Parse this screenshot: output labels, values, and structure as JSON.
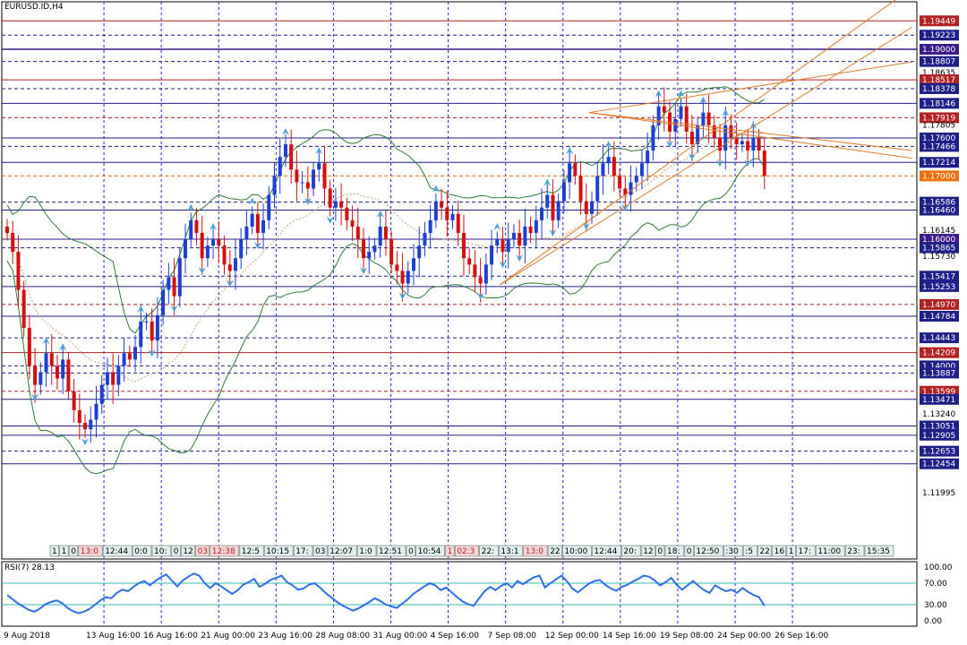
{
  "symbol_label": "EURUSD.ID,H4",
  "rsi_label": "RSI(7) 28.13",
  "colors": {
    "up": "#1f3fcf",
    "down": "#d21010",
    "bands": "#2e7d32",
    "trend": "#e07a2a",
    "grid": "#1c2bd6",
    "rsi": "#2f6fe8",
    "rsi_level": "#33bcbc"
  },
  "chart_data": {
    "type": "candlestick",
    "timeframe": "H4",
    "ylim": [
      1.1095,
      1.1975
    ],
    "x_labels": [
      "9 Aug 2018",
      "13 Aug 16:00",
      "16 Aug 16:00",
      "21 Aug 00:00",
      "23 Aug 16:00",
      "28 Aug 08:00",
      "31 Aug 00:00",
      "4 Sep 16:00",
      "7 Sep 08:00",
      "12 Sep 00:00",
      "14 Sep 16:00",
      "19 Sep 08:00",
      "24 Sep 00:00",
      "26 Sep 16:00"
    ],
    "price_ticks": [
      {
        "value": 1.19449,
        "label": "1.19449",
        "style": "box",
        "color": "#b22222"
      },
      {
        "value": 1.19223,
        "label": "1.19223",
        "style": "box",
        "color": "#1f1f8a"
      },
      {
        "value": 1.19,
        "label": "1.19000",
        "style": "box",
        "color": "#3b1a8a"
      },
      {
        "value": 1.18807,
        "label": "1.18807",
        "style": "box",
        "color": "#1f1f8a"
      },
      {
        "value": 1.18635,
        "label": "1.18635",
        "style": "plain"
      },
      {
        "value": 1.18517,
        "label": "1.18517",
        "style": "box",
        "color": "#b22222"
      },
      {
        "value": 1.18378,
        "label": "1.18378",
        "style": "box",
        "color": "#1f1f8a"
      },
      {
        "value": 1.18146,
        "label": "1.18146",
        "style": "box",
        "color": "#1f1f8a"
      },
      {
        "value": 1.17919,
        "label": "1.17919",
        "style": "box",
        "color": "#b22222"
      },
      {
        "value": 1.17805,
        "label": "1.17805",
        "style": "plain"
      },
      {
        "value": 1.176,
        "label": "1.17600",
        "style": "box",
        "color": "#1f1f8a"
      },
      {
        "value": 1.17466,
        "label": "1.17466",
        "style": "box",
        "color": "#1f1f8a"
      },
      {
        "value": 1.17214,
        "label": "1.17214",
        "style": "box",
        "color": "#1f1f8a"
      },
      {
        "value": 1.17,
        "label": "1.17000",
        "style": "box",
        "color": "#f07010"
      },
      {
        "value": 1.16586,
        "label": "1.16586",
        "style": "box",
        "color": "#1f1f8a"
      },
      {
        "value": 1.1646,
        "label": "1.16460",
        "style": "box",
        "color": "#1f1f8a"
      },
      {
        "value": 1.16145,
        "label": "1.16145",
        "style": "plain"
      },
      {
        "value": 1.16,
        "label": "1.16000",
        "style": "box",
        "color": "#3b1a8a"
      },
      {
        "value": 1.15865,
        "label": "1.15865",
        "style": "box",
        "color": "#1f1f8a"
      },
      {
        "value": 1.1573,
        "label": "1.15730",
        "style": "plain"
      },
      {
        "value": 1.15417,
        "label": "1.15417",
        "style": "box",
        "color": "#1f1f8a"
      },
      {
        "value": 1.15253,
        "label": "1.15253",
        "style": "box",
        "color": "#1f1f8a"
      },
      {
        "value": 1.1497,
        "label": "1.14970",
        "style": "box",
        "color": "#b22222"
      },
      {
        "value": 1.14784,
        "label": "1.14784",
        "style": "box",
        "color": "#1f1f8a"
      },
      {
        "value": 1.14443,
        "label": "1.14443",
        "style": "box",
        "color": "#1f1f8a"
      },
      {
        "value": 1.14209,
        "label": "1.14209",
        "style": "box",
        "color": "#b22222"
      },
      {
        "value": 1.14,
        "label": "1.14000",
        "style": "box",
        "color": "#1f1f8a"
      },
      {
        "value": 1.13887,
        "label": "1.13887",
        "style": "box",
        "color": "#1f1f8a"
      },
      {
        "value": 1.13599,
        "label": "1.13599",
        "style": "box",
        "color": "#b22222"
      },
      {
        "value": 1.13471,
        "label": "1.13471",
        "style": "box",
        "color": "#1f1f8a"
      },
      {
        "value": 1.1324,
        "label": "1.13240",
        "style": "plain"
      },
      {
        "value": 1.13051,
        "label": "1.13051",
        "style": "box",
        "color": "#1f1f8a"
      },
      {
        "value": 1.12905,
        "label": "1.12905",
        "style": "box",
        "color": "#1f1f8a"
      },
      {
        "value": 1.12653,
        "label": "1.12653",
        "style": "box",
        "color": "#1f1f8a"
      },
      {
        "value": 1.12454,
        "label": "1.12454",
        "style": "box",
        "color": "#1f1f8a"
      },
      {
        "value": 1.11995,
        "label": "1.11995",
        "style": "plain"
      }
    ],
    "horizontal_levels": [
      {
        "value": 1.19449,
        "style": "solid",
        "color": "#b22222"
      },
      {
        "value": 1.19223,
        "style": "dash",
        "color": "#1f1f8a"
      },
      {
        "value": 1.19,
        "style": "solid",
        "color": "#3b1a8a",
        "width": 1.5
      },
      {
        "value": 1.18807,
        "style": "dash",
        "color": "#1f1f8a"
      },
      {
        "value": 1.18517,
        "style": "solid",
        "color": "#b22222"
      },
      {
        "value": 1.18378,
        "style": "dash",
        "color": "#1f1f8a"
      },
      {
        "value": 1.18146,
        "style": "solid",
        "color": "#1f1f8a"
      },
      {
        "value": 1.17919,
        "style": "dash",
        "color": "#b22222"
      },
      {
        "value": 1.176,
        "style": "solid",
        "color": "#1f1f8a"
      },
      {
        "value": 1.17466,
        "style": "dash",
        "color": "#1f1f8a"
      },
      {
        "value": 1.17214,
        "style": "solid",
        "color": "#1f1f8a"
      },
      {
        "value": 1.17,
        "style": "dash",
        "color": "#f07010"
      },
      {
        "value": 1.16586,
        "style": "dash",
        "color": "#1f1f8a"
      },
      {
        "value": 1.1646,
        "style": "solid",
        "color": "#1f1f8a"
      },
      {
        "value": 1.16,
        "style": "solid",
        "color": "#3b1a8a"
      },
      {
        "value": 1.15865,
        "style": "dash",
        "color": "#1f1f8a"
      },
      {
        "value": 1.15417,
        "style": "dash",
        "color": "#1f1f8a"
      },
      {
        "value": 1.15253,
        "style": "solid",
        "color": "#1f1f8a"
      },
      {
        "value": 1.1497,
        "style": "dash",
        "color": "#b22222"
      },
      {
        "value": 1.14784,
        "style": "solid",
        "color": "#1f1f8a"
      },
      {
        "value": 1.14443,
        "style": "dash",
        "color": "#1f1f8a"
      },
      {
        "value": 1.14209,
        "style": "solid",
        "color": "#b22222"
      },
      {
        "value": 1.14,
        "style": "dash",
        "color": "#1f1f8a"
      },
      {
        "value": 1.13887,
        "style": "dash",
        "color": "#1f1f8a"
      },
      {
        "value": 1.13599,
        "style": "dash",
        "color": "#b22222"
      },
      {
        "value": 1.13471,
        "style": "solid",
        "color": "#1f1f8a"
      },
      {
        "value": 1.13051,
        "style": "solid",
        "color": "#1f1f8a"
      },
      {
        "value": 1.12905,
        "style": "solid",
        "color": "#1f1f8a"
      },
      {
        "value": 1.12653,
        "style": "dash",
        "color": "#1f1f8a"
      },
      {
        "value": 1.12454,
        "style": "solid",
        "color": "#1f1f8a"
      }
    ],
    "trend_lines": [
      {
        "x": [
          88.5,
          140
        ],
        "y": [
          1.1528,
          1.1997
        ]
      },
      {
        "x": [
          88.5,
          140
        ],
        "y": [
          1.1528,
          1.1935
        ]
      },
      {
        "x": [
          104.5,
          140
        ],
        "y": [
          1.18,
          1.174
        ]
      },
      {
        "x": [
          104.5,
          140
        ],
        "y": [
          1.18,
          1.188
        ]
      },
      {
        "x": [
          104.5,
          140
        ],
        "y": [
          1.18,
          1.1728
        ]
      }
    ],
    "close_path": [
      [
        0,
        1.161
      ],
      [
        2,
        1.158
      ],
      [
        4,
        1.152
      ],
      [
        6,
        1.146
      ],
      [
        7,
        1.14
      ],
      [
        8,
        1.137
      ],
      [
        9,
        1.139
      ],
      [
        10,
        1.142
      ],
      [
        11,
        1.14
      ],
      [
        12,
        1.138
      ],
      [
        13,
        1.141
      ],
      [
        14,
        1.136
      ],
      [
        15,
        1.133
      ],
      [
        16,
        1.131
      ],
      [
        17,
        1.13
      ],
      [
        18,
        1.1315
      ],
      [
        19,
        1.134
      ],
      [
        20,
        1.137
      ],
      [
        21,
        1.139
      ],
      [
        22,
        1.137
      ],
      [
        23,
        1.14
      ],
      [
        24,
        1.142
      ],
      [
        25,
        1.141
      ],
      [
        26,
        1.143
      ],
      [
        27,
        1.147
      ],
      [
        28,
        1.147
      ],
      [
        29,
        1.144
      ],
      [
        30,
        1.148
      ],
      [
        31,
        1.152
      ],
      [
        32,
        1.154
      ],
      [
        33,
        1.151
      ],
      [
        34,
        1.157
      ],
      [
        35,
        1.16
      ],
      [
        36,
        1.163
      ],
      [
        37,
        1.161
      ],
      [
        38,
        1.157
      ],
      [
        39,
        1.159
      ],
      [
        40,
        1.16
      ],
      [
        41,
        1.159
      ],
      [
        42,
        1.156
      ],
      [
        43,
        1.155
      ],
      [
        44,
        1.157
      ],
      [
        45,
        1.16
      ],
      [
        46,
        1.162
      ],
      [
        47,
        1.164
      ],
      [
        48,
        1.161
      ],
      [
        49,
        1.163
      ],
      [
        50,
        1.167
      ],
      [
        51,
        1.17
      ],
      [
        52,
        1.173
      ],
      [
        53,
        1.175
      ],
      [
        54,
        1.171
      ],
      [
        55,
        1.169
      ],
      [
        56,
        1.169
      ],
      [
        57,
        1.168
      ],
      [
        58,
        1.171
      ],
      [
        59,
        1.172
      ],
      [
        60,
        1.168
      ],
      [
        61,
        1.165
      ],
      [
        62,
        1.166
      ],
      [
        63,
        1.165
      ],
      [
        64,
        1.163
      ],
      [
        65,
        1.162
      ],
      [
        66,
        1.16
      ],
      [
        67,
        1.157
      ],
      [
        68,
        1.158
      ],
      [
        69,
        1.159
      ],
      [
        70,
        1.162
      ],
      [
        71,
        1.16
      ],
      [
        72,
        1.156
      ],
      [
        73,
        1.155
      ],
      [
        74,
        1.153
      ],
      [
        75,
        1.155
      ],
      [
        76,
        1.157
      ],
      [
        77,
        1.159
      ],
      [
        78,
        1.161
      ],
      [
        79,
        1.163
      ],
      [
        80,
        1.166
      ],
      [
        81,
        1.165
      ],
      [
        82,
        1.163
      ],
      [
        83,
        1.164
      ],
      [
        84,
        1.161
      ],
      [
        85,
        1.157
      ],
      [
        86,
        1.156
      ],
      [
        87,
        1.154
      ],
      [
        88,
        1.153
      ],
      [
        89,
        1.156
      ],
      [
        90,
        1.159
      ],
      [
        91,
        1.16
      ],
      [
        92,
        1.158
      ],
      [
        93,
        1.16
      ],
      [
        94,
        1.161
      ],
      [
        95,
        1.159
      ],
      [
        96,
        1.162
      ],
      [
        97,
        1.161
      ],
      [
        98,
        1.163
      ],
      [
        99,
        1.165
      ],
      [
        100,
        1.167
      ],
      [
        101,
        1.163
      ],
      [
        102,
        1.166
      ],
      [
        103,
        1.169
      ],
      [
        104,
        1.172
      ],
      [
        105,
        1.17
      ],
      [
        106,
        1.166
      ],
      [
        107,
        1.164
      ],
      [
        108,
        1.166
      ],
      [
        109,
        1.17
      ],
      [
        110,
        1.172
      ],
      [
        111,
        1.173
      ],
      [
        112,
        1.17
      ],
      [
        113,
        1.168
      ],
      [
        114,
        1.167
      ],
      [
        115,
        1.169
      ],
      [
        116,
        1.17
      ],
      [
        117,
        1.172
      ],
      [
        118,
        1.174
      ],
      [
        119,
        1.178
      ],
      [
        120,
        1.181
      ],
      [
        121,
        1.18
      ],
      [
        122,
        1.177
      ],
      [
        123,
        1.179
      ],
      [
        124,
        1.181
      ],
      [
        125,
        1.177
      ],
      [
        126,
        1.175
      ],
      [
        127,
        1.178
      ],
      [
        128,
        1.18
      ],
      [
        129,
        1.178
      ],
      [
        130,
        1.176
      ],
      [
        131,
        1.174
      ],
      [
        132,
        1.178
      ],
      [
        133,
        1.176
      ],
      [
        134,
        1.175
      ],
      [
        135,
        1.1755
      ],
      [
        136,
        1.174
      ],
      [
        137,
        1.176
      ],
      [
        138,
        1.174
      ],
      [
        139,
        1.17
      ]
    ],
    "rsi": {
      "period": 7,
      "ylim": [
        0,
        100
      ],
      "tick_labels": [
        "100.00",
        "70.00",
        "30.00",
        "0.00"
      ],
      "tick_values": [
        100,
        70,
        30,
        0
      ],
      "levels": [
        70,
        30
      ],
      "values": [
        48,
        40,
        32,
        26,
        20,
        17,
        23,
        31,
        35,
        38,
        33,
        24,
        18,
        14,
        17,
        22,
        30,
        38,
        44,
        42,
        52,
        58,
        55,
        63,
        70,
        74,
        66,
        74,
        81,
        86,
        75,
        64,
        75,
        82,
        88,
        84,
        70,
        61,
        70,
        64,
        57,
        50,
        57,
        67,
        72,
        78,
        63,
        69,
        76,
        80,
        84,
        72,
        66,
        58,
        60,
        67,
        70,
        62,
        52,
        44,
        36,
        29,
        24,
        19,
        23,
        29,
        35,
        42,
        37,
        30,
        27,
        24,
        32,
        40,
        50,
        57,
        64,
        70,
        66,
        57,
        62,
        53,
        44,
        36,
        31,
        28,
        42,
        55,
        63,
        57,
        65,
        70,
        62,
        74,
        68,
        75,
        81,
        84,
        62,
        70,
        77,
        84,
        74,
        60,
        53,
        61,
        69,
        74,
        76,
        67,
        60,
        56,
        63,
        67,
        73,
        78,
        84,
        82,
        75,
        66,
        72,
        80,
        67,
        58,
        66,
        74,
        65,
        57,
        52,
        66,
        60,
        55,
        58,
        52,
        61,
        54,
        48,
        44,
        28
      ]
    },
    "session_labels": [
      "1",
      "1",
      "0",
      "13:0",
      "12:44",
      "0:0",
      "10:",
      "0",
      "12",
      "03",
      "12:38",
      "12:5",
      "10:15",
      "17:",
      "03",
      "12:07",
      "1:0",
      "12:51",
      "0",
      "10:54",
      "1",
      "02:3",
      "22:",
      "13:1",
      "13:0",
      "22",
      "10:00",
      "12:44",
      "20:",
      "12",
      "0",
      "18:",
      "0",
      "12:50",
      ":30",
      ":5",
      "22",
      "16",
      "1",
      "17:",
      "11:00",
      "23:",
      "15:35"
    ],
    "session_label_red": [
      3,
      9,
      10,
      20,
      21,
      24
    ]
  }
}
